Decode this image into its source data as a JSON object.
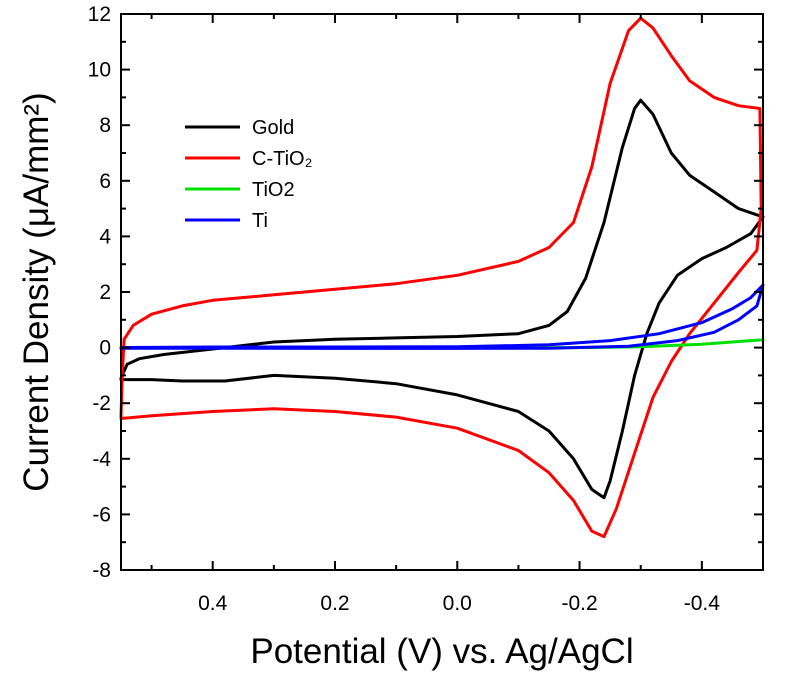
{
  "chart_data": {
    "type": "line",
    "title": "",
    "xlabel": "Potential (V) vs. Ag/AgCl",
    "ylabel": "Current Density (μA/mm²)",
    "xlim": [
      0.55,
      -0.5
    ],
    "ylim": [
      -8,
      12
    ],
    "x_reversed": true,
    "grid": false,
    "legend_position": "upper-left",
    "x_ticks": [
      0.4,
      0.2,
      0.0,
      -0.2,
      -0.4
    ],
    "x_tick_labels": [
      "0.4",
      "0.2",
      "0.0",
      "-0.2",
      "-0.4"
    ],
    "y_ticks": [
      -8,
      -6,
      -4,
      -2,
      0,
      2,
      4,
      6,
      8,
      10,
      12
    ],
    "y_tick_labels": [
      "-8",
      "-6",
      "-4",
      "-2",
      "0",
      "2",
      "4",
      "6",
      "8",
      "10",
      "12"
    ],
    "series": [
      {
        "name": "Gold",
        "color": "#000000",
        "points": [
          [
            0.55,
            -1.1
          ],
          [
            0.54,
            -0.6
          ],
          [
            0.52,
            -0.4
          ],
          [
            0.48,
            -0.25
          ],
          [
            0.4,
            -0.05
          ],
          [
            0.3,
            0.2
          ],
          [
            0.2,
            0.3
          ],
          [
            0.1,
            0.35
          ],
          [
            0.0,
            0.4
          ],
          [
            -0.1,
            0.5
          ],
          [
            -0.15,
            0.8
          ],
          [
            -0.18,
            1.3
          ],
          [
            -0.21,
            2.5
          ],
          [
            -0.24,
            4.5
          ],
          [
            -0.27,
            7.2
          ],
          [
            -0.29,
            8.6
          ],
          [
            -0.3,
            8.9
          ],
          [
            -0.32,
            8.4
          ],
          [
            -0.35,
            7.0
          ],
          [
            -0.38,
            6.2
          ],
          [
            -0.42,
            5.6
          ],
          [
            -0.46,
            5.0
          ],
          [
            -0.5,
            4.7
          ],
          [
            -0.48,
            4.1
          ],
          [
            -0.44,
            3.6
          ],
          [
            -0.4,
            3.2
          ],
          [
            -0.36,
            2.6
          ],
          [
            -0.33,
            1.6
          ],
          [
            -0.31,
            0.5
          ],
          [
            -0.29,
            -1.0
          ],
          [
            -0.27,
            -3.0
          ],
          [
            -0.25,
            -4.8
          ],
          [
            -0.24,
            -5.4
          ],
          [
            -0.22,
            -5.1
          ],
          [
            -0.19,
            -4.0
          ],
          [
            -0.15,
            -3.0
          ],
          [
            -0.1,
            -2.3
          ],
          [
            0.0,
            -1.7
          ],
          [
            0.1,
            -1.3
          ],
          [
            0.2,
            -1.1
          ],
          [
            0.3,
            -1.0
          ],
          [
            0.38,
            -1.2
          ],
          [
            0.45,
            -1.2
          ],
          [
            0.5,
            -1.15
          ],
          [
            0.55,
            -1.15
          ]
        ]
      },
      {
        "name": "C-TiO₂",
        "color": "#ff0000",
        "points": [
          [
            0.55,
            -2.5
          ],
          [
            0.548,
            -1.0
          ],
          [
            0.545,
            0.3
          ],
          [
            0.53,
            0.8
          ],
          [
            0.5,
            1.2
          ],
          [
            0.45,
            1.5
          ],
          [
            0.4,
            1.7
          ],
          [
            0.3,
            1.9
          ],
          [
            0.2,
            2.1
          ],
          [
            0.1,
            2.3
          ],
          [
            0.0,
            2.6
          ],
          [
            -0.1,
            3.1
          ],
          [
            -0.15,
            3.6
          ],
          [
            -0.19,
            4.5
          ],
          [
            -0.22,
            6.5
          ],
          [
            -0.25,
            9.5
          ],
          [
            -0.28,
            11.4
          ],
          [
            -0.3,
            11.85
          ],
          [
            -0.32,
            11.5
          ],
          [
            -0.35,
            10.5
          ],
          [
            -0.38,
            9.6
          ],
          [
            -0.42,
            9.0
          ],
          [
            -0.46,
            8.7
          ],
          [
            -0.495,
            8.6
          ],
          [
            -0.497,
            5.0
          ],
          [
            -0.49,
            3.5
          ],
          [
            -0.46,
            2.7
          ],
          [
            -0.42,
            1.6
          ],
          [
            -0.38,
            0.5
          ],
          [
            -0.35,
            -0.5
          ],
          [
            -0.32,
            -1.8
          ],
          [
            -0.29,
            -3.8
          ],
          [
            -0.26,
            -5.8
          ],
          [
            -0.24,
            -6.8
          ],
          [
            -0.22,
            -6.6
          ],
          [
            -0.19,
            -5.5
          ],
          [
            -0.15,
            -4.5
          ],
          [
            -0.1,
            -3.7
          ],
          [
            0.0,
            -2.9
          ],
          [
            0.1,
            -2.5
          ],
          [
            0.2,
            -2.3
          ],
          [
            0.3,
            -2.2
          ],
          [
            0.4,
            -2.3
          ],
          [
            0.5,
            -2.45
          ],
          [
            0.55,
            -2.55
          ]
        ]
      },
      {
        "name": "TiO2",
        "color": "#00e000",
        "points": [
          [
            0.55,
            0.0
          ],
          [
            0.4,
            0.0
          ],
          [
            0.2,
            0.0
          ],
          [
            0.0,
            0.0
          ],
          [
            -0.2,
            0.0
          ],
          [
            -0.3,
            0.03
          ],
          [
            -0.4,
            0.12
          ],
          [
            -0.45,
            0.2
          ],
          [
            -0.5,
            0.28
          ]
        ]
      },
      {
        "name": "Ti",
        "color": "#0000ff",
        "points": [
          [
            0.55,
            0.0
          ],
          [
            0.4,
            0.02
          ],
          [
            0.2,
            0.02
          ],
          [
            0.0,
            0.03
          ],
          [
            -0.15,
            0.1
          ],
          [
            -0.25,
            0.25
          ],
          [
            -0.33,
            0.5
          ],
          [
            -0.4,
            0.9
          ],
          [
            -0.45,
            1.4
          ],
          [
            -0.48,
            1.8
          ],
          [
            -0.5,
            2.25
          ],
          [
            -0.49,
            1.5
          ],
          [
            -0.46,
            1.0
          ],
          [
            -0.42,
            0.55
          ],
          [
            -0.36,
            0.25
          ],
          [
            -0.28,
            0.05
          ],
          [
            -0.15,
            -0.02
          ],
          [
            0.0,
            -0.03
          ],
          [
            0.2,
            -0.03
          ],
          [
            0.4,
            -0.02
          ],
          [
            0.55,
            -0.02
          ]
        ]
      }
    ]
  }
}
